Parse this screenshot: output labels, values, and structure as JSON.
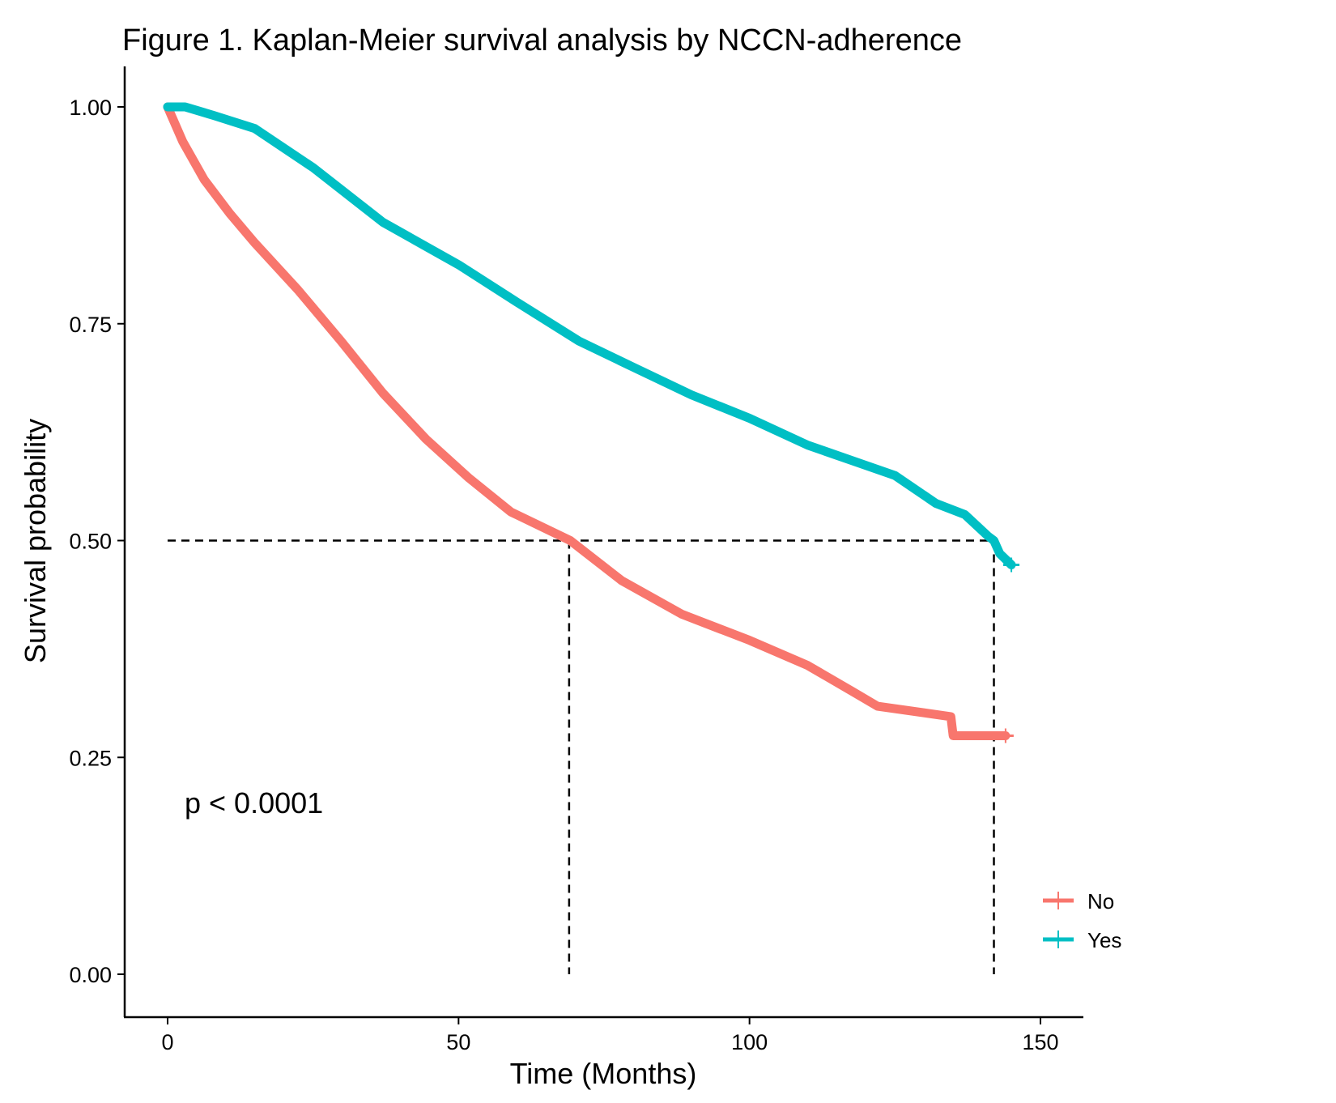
{
  "chart_data": {
    "type": "line",
    "title": "Figure 1. Kaplan-Meier survival analysis by NCCN-adherence",
    "xlabel": "Time (Months)",
    "ylabel": "Survival probability",
    "xlim": [
      -7,
      157
    ],
    "ylim": [
      -0.05,
      1.05
    ],
    "xticks": [
      "0",
      "50",
      "100",
      "150"
    ],
    "xtick_values": [
      0,
      50,
      100,
      150
    ],
    "yticks": [
      "0.00",
      "0.25",
      "0.50",
      "0.75",
      "1.00"
    ],
    "ytick_values": [
      0,
      0.25,
      0.5,
      0.75,
      1.0
    ],
    "grid": false,
    "legend_position": "bottom-right",
    "annotation": "p < 0.0001",
    "median_line_y": 0.5,
    "medians": [
      69,
      142
    ],
    "series": [
      {
        "name": "No",
        "color": "#F8766D",
        "x": [
          0,
          2.6,
          6.3,
          10.7,
          15,
          22.4,
          29.8,
          37,
          44.4,
          51.8,
          59,
          69.2,
          78,
          88.4,
          100,
          110,
          117.7,
          122,
          134.6,
          135,
          144
        ],
        "y": [
          1.0,
          0.96,
          0.916,
          0.877,
          0.843,
          0.789,
          0.73,
          0.67,
          0.617,
          0.572,
          0.533,
          0.5,
          0.454,
          0.415,
          0.385,
          0.356,
          0.326,
          0.309,
          0.297,
          0.275,
          0.275
        ]
      },
      {
        "name": "Yes",
        "color": "#00BFC4",
        "x": [
          0,
          3,
          8,
          15,
          25,
          37,
          50,
          60,
          70.7,
          80,
          90,
          100,
          110,
          117.7,
          125,
          132,
          137,
          141,
          142,
          143,
          145
        ],
        "y": [
          1.0,
          1.0,
          0.99,
          0.975,
          0.93,
          0.867,
          0.818,
          0.775,
          0.73,
          0.7,
          0.668,
          0.641,
          0.61,
          0.592,
          0.575,
          0.543,
          0.53,
          0.505,
          0.5,
          0.485,
          0.472
        ]
      }
    ]
  }
}
